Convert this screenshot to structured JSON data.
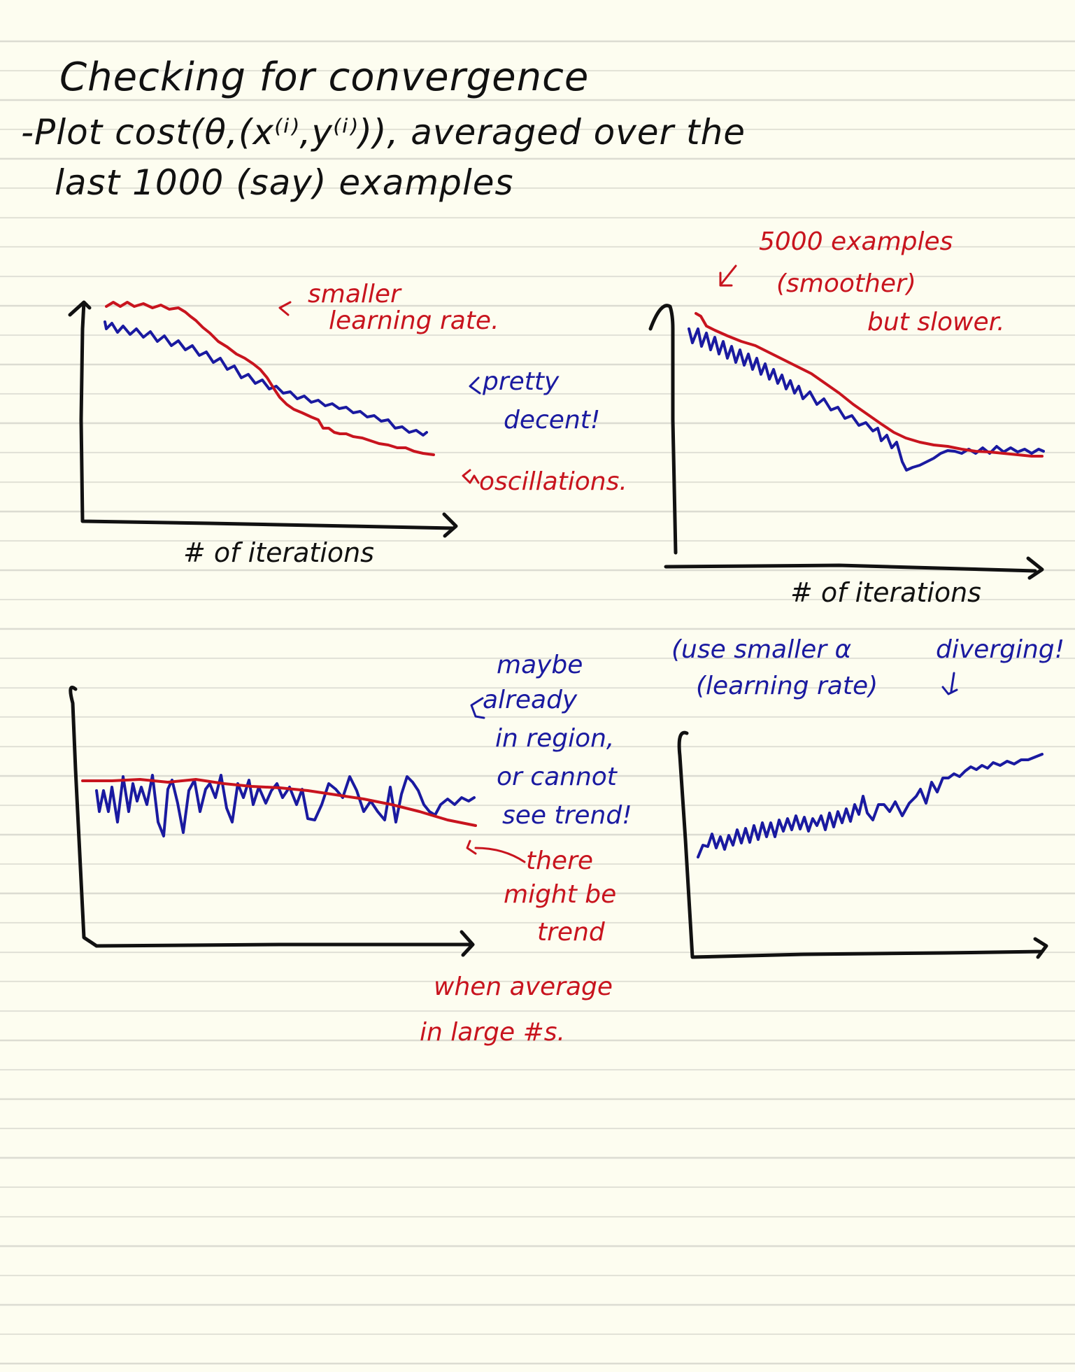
{
  "title": "Checking for convergence",
  "intro": {
    "line1": "-Plot cost(θ,(x⁽ⁱ⁾,y⁽ⁱ⁾)), averaged over the",
    "line2": "last 1000 (say) examples"
  },
  "plot1": {
    "red_note": [
      "smaller",
      "learning rate."
    ],
    "blue_note": [
      "pretty",
      "decent!"
    ],
    "oscillations_note": "oscillations.",
    "xlabel": "# of iterations"
  },
  "plot2": {
    "red_note": [
      "5000 examples",
      "(smoother)",
      "but slower."
    ],
    "xlabel": "# of iterations"
  },
  "plot3": {
    "blue_note": [
      "maybe",
      "already",
      "in region,",
      "or cannot",
      "see trend!"
    ],
    "red_note": [
      "there",
      "might be",
      "trend"
    ],
    "red_note2": [
      "when average",
      "in large #s."
    ]
  },
  "plot4": {
    "blue_note_left": [
      "(use smaller α",
      "(learning rate)"
    ],
    "blue_note_right": "diverging!"
  },
  "colors": {
    "ink": "#111111",
    "red": "#c8141e",
    "blue": "#1a1aa0",
    "paper": "#fdfdf0"
  }
}
